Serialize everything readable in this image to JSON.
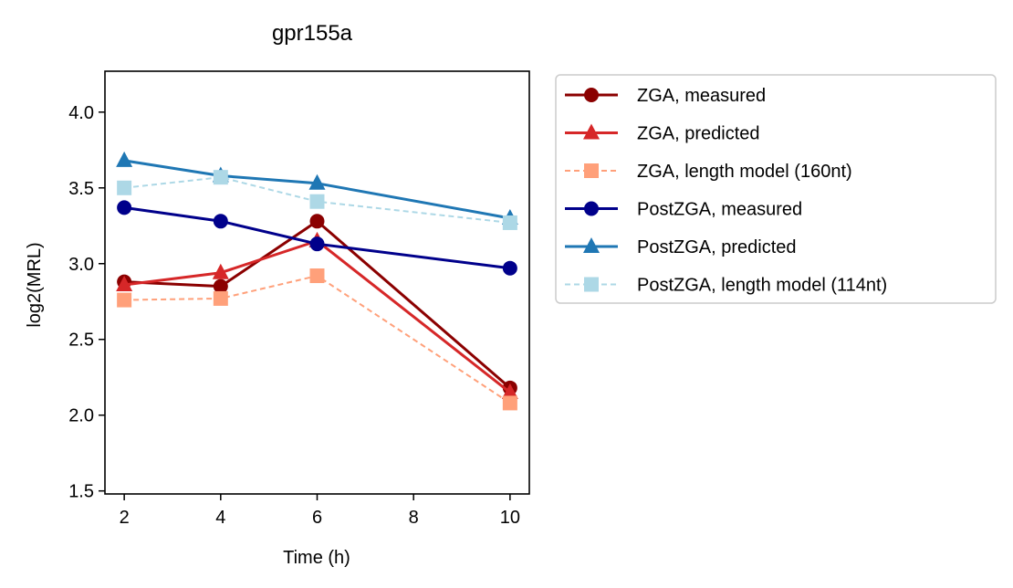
{
  "chart_data": {
    "type": "line",
    "title": "gpr155a",
    "xlabel": "Time (h)",
    "ylabel": "log2(MRL)",
    "xlim": [
      1.6,
      10.4
    ],
    "ylim": [
      1.48,
      4.27
    ],
    "xticks": [
      2,
      4,
      6,
      8,
      10
    ],
    "yticks": [
      1.5,
      2.0,
      2.5,
      3.0,
      3.5,
      4.0
    ],
    "xtick_labels": [
      "2",
      "4",
      "6",
      "8",
      "10"
    ],
    "ytick_labels": [
      "1.5",
      "2.0",
      "2.5",
      "3.0",
      "3.5",
      "4.0"
    ],
    "grid": false,
    "legend_position": "outside-right",
    "x": [
      2,
      4,
      6,
      10
    ],
    "series": [
      {
        "name": "ZGA, measured",
        "values": [
          2.88,
          2.85,
          3.28,
          2.18
        ],
        "color": "#8b0000",
        "marker": "circle",
        "dashed": false
      },
      {
        "name": "ZGA, predicted",
        "values": [
          2.86,
          2.94,
          3.15,
          2.15
        ],
        "color": "#d62728",
        "marker": "triangle",
        "dashed": false
      },
      {
        "name": "ZGA, length model (160nt)",
        "values": [
          2.76,
          2.77,
          2.92,
          2.08
        ],
        "color": "#ffa07a",
        "marker": "square",
        "dashed": true
      },
      {
        "name": "PostZGA, measured",
        "values": [
          3.37,
          3.28,
          3.13,
          2.97
        ],
        "color": "#00008b",
        "marker": "circle",
        "dashed": false
      },
      {
        "name": "PostZGA, predicted",
        "values": [
          3.68,
          3.58,
          3.53,
          3.3
        ],
        "color": "#1f77b4",
        "marker": "triangle",
        "dashed": false
      },
      {
        "name": "PostZGA, length model (114nt)",
        "values": [
          3.5,
          3.57,
          3.41,
          3.27
        ],
        "color": "#add8e6",
        "marker": "square",
        "dashed": true
      }
    ]
  }
}
